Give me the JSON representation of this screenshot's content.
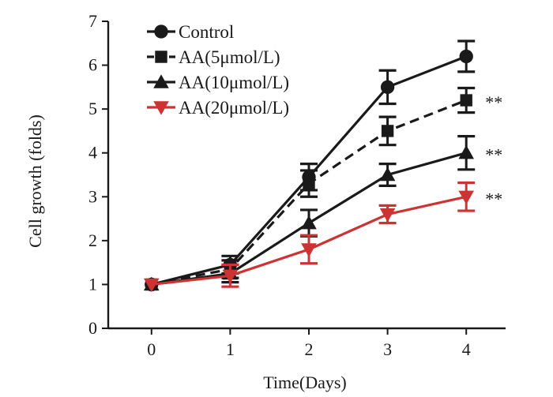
{
  "chart_data": {
    "type": "line",
    "title": "",
    "xlabel": "Time(Days)",
    "ylabel": "Cell growth (folds)",
    "x": [
      0,
      1,
      2,
      3,
      4
    ],
    "xlim": [
      -0.55,
      4.5
    ],
    "ylim": [
      0,
      7
    ],
    "yticks": [
      0,
      1,
      2,
      3,
      4,
      5,
      6,
      7
    ],
    "xticks": [
      0,
      1,
      2,
      3,
      4
    ],
    "grid": false,
    "legend_position": "top-left",
    "series": [
      {
        "name": "Control",
        "values": [
          1.0,
          1.45,
          3.45,
          5.5,
          6.2
        ],
        "errors": [
          0.0,
          0.2,
          0.3,
          0.38,
          0.35
        ],
        "color": "#1a1a1a",
        "marker": "circle",
        "dash": "solid",
        "significance": ""
      },
      {
        "name": "AA(5μmol/L)",
        "values": [
          1.0,
          1.35,
          3.3,
          4.5,
          5.2
        ],
        "errors": [
          0.0,
          0.2,
          0.3,
          0.32,
          0.28
        ],
        "color": "#1a1a1a",
        "marker": "square",
        "dash": "dashed",
        "significance": "**"
      },
      {
        "name": "AA(10μmol/L)",
        "values": [
          1.0,
          1.25,
          2.4,
          3.5,
          4.0
        ],
        "errors": [
          0.0,
          0.2,
          0.3,
          0.25,
          0.38
        ],
        "color": "#1a1a1a",
        "marker": "triangle-up",
        "dash": "solid",
        "significance": "**"
      },
      {
        "name": "AA(20μmol/L)",
        "values": [
          1.0,
          1.2,
          1.8,
          2.6,
          3.0
        ],
        "errors": [
          0.0,
          0.25,
          0.32,
          0.2,
          0.32
        ],
        "color": "#cc3333",
        "marker": "triangle-down",
        "dash": "solid",
        "significance": "**"
      }
    ]
  }
}
